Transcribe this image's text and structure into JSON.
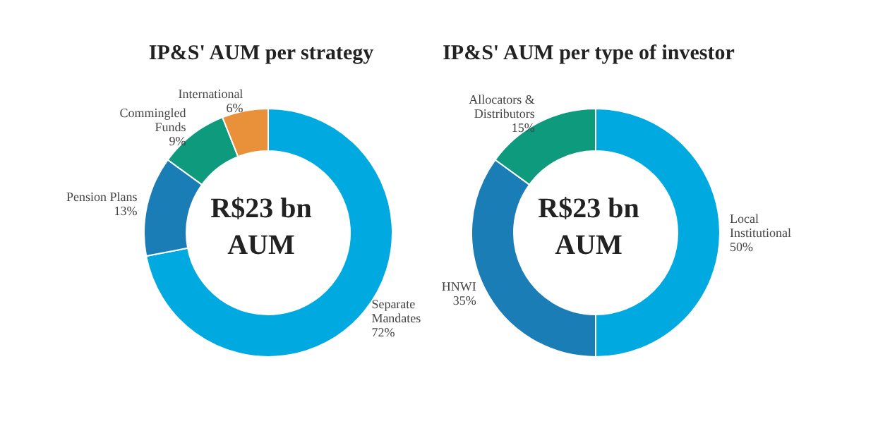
{
  "chart_data": [
    {
      "type": "donut",
      "title": "IP&S' AUM per strategy",
      "categories": [
        "Separate Mandates",
        "Pension Plans",
        "Commingled Funds",
        "International"
      ],
      "values": [
        72,
        13,
        9,
        6
      ],
      "value_labels": [
        "72%",
        "13%",
        "9%",
        "6%"
      ],
      "colors": [
        "#00a9e0",
        "#1a7db5",
        "#0e9a7c",
        "#e8913a"
      ],
      "annotations": [
        "R$23 bn",
        "AUM"
      ]
    },
    {
      "type": "donut",
      "title": "IP&S' AUM per type of investor",
      "categories": [
        "Local Institutional",
        "HNWI",
        "Allocators & Distributors"
      ],
      "values": [
        50,
        35,
        15
      ],
      "value_labels": [
        "50%",
        "35%",
        "15%"
      ],
      "colors": [
        "#00a9e0",
        "#1a7db5",
        "#0e9a7c"
      ],
      "annotations": [
        "R$23 bn",
        "AUM"
      ]
    }
  ]
}
